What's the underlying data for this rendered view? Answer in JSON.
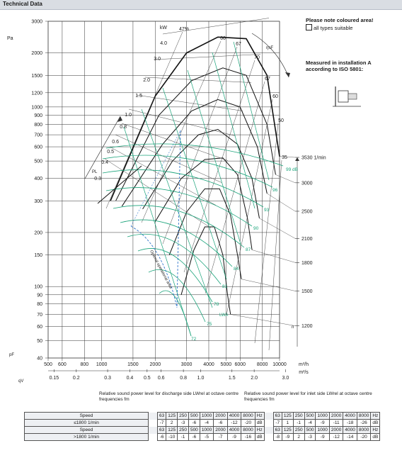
{
  "header": {
    "title": "Technical Data"
  },
  "notes": {
    "coloured_area": "Please note coloured area!",
    "all_types": "all types suitable",
    "measured_1": "Measured in installation A",
    "measured_2": "according to ISO 5801:"
  },
  "colors": {
    "grid": "#333333",
    "black_curve": "#111111",
    "green": "#1aa37a",
    "blue_dash": "#3377cc",
    "header_bg": "#d9dde3"
  },
  "chart_data": {
    "type": "line",
    "title": "",
    "y_axis": {
      "label": "Pa",
      "sub_label": "pF",
      "scale": "log",
      "range": [
        40,
        3000
      ],
      "ticks": [
        40,
        50,
        60,
        70,
        80,
        90,
        100,
        150,
        200,
        300,
        400,
        500,
        600,
        700,
        800,
        900,
        1000,
        1200,
        1500,
        2000,
        3000
      ]
    },
    "x_axis": {
      "label": "m³/h",
      "scale": "log",
      "range": [
        500,
        10000
      ],
      "ticks": [
        500,
        600,
        800,
        1000,
        1500,
        2000,
        3000,
        4000,
        5000,
        6000,
        8000,
        10000
      ]
    },
    "x_axis_2": {
      "label": "m³/s",
      "sub_label": "qV",
      "ticks": [
        "0.15",
        "0.2",
        "0.3",
        "0.4",
        "0.5",
        "0.6",
        "0.8",
        "1.0",
        "1.5",
        "2.0",
        "3.0"
      ],
      "tick_values": [
        0.15,
        0.2,
        0.3,
        0.4,
        0.5,
        0.6,
        0.8,
        1.0,
        1.5,
        2.0,
        3.0
      ]
    },
    "speed_axis": {
      "unit": "1/min",
      "ticks": [
        1200,
        1500,
        1800,
        2100,
        2500,
        3000,
        3530
      ],
      "sub_label": "n"
    },
    "power_labels": [
      "kW",
      "4.0",
      "3.0",
      "2.0",
      "1.5",
      "1.0",
      "0.8",
      "0.6",
      "0.5",
      "0.4",
      "0.3"
    ],
    "efficiency_labels": [
      "47%",
      "60",
      "67",
      "70",
      "67",
      "60",
      "50",
      "35"
    ],
    "efficiency_axis_label": "ηsF",
    "power_axis_label": "PL",
    "sound_labels": [
      "99 dB",
      "96",
      "93",
      "90",
      "87",
      "84",
      "81",
      "78",
      "75",
      "72"
    ],
    "sound_axis_label": "LWA",
    "annotation": "Optimal operational area",
    "speed_curves": [
      {
        "n": 3530,
        "points": [
          [
            1120,
            300
          ],
          [
            2000,
            1150
          ],
          [
            3000,
            2000
          ],
          [
            4500,
            2450
          ],
          [
            6500,
            2400
          ],
          [
            8500,
            1500
          ],
          [
            10000,
            530
          ]
        ]
      },
      {
        "n": 3000,
        "points": [
          [
            1200,
            300
          ],
          [
            2100,
            900
          ],
          [
            3200,
            1400
          ],
          [
            4800,
            1650
          ],
          [
            6500,
            1500
          ],
          [
            8500,
            800
          ],
          [
            9500,
            420
          ]
        ]
      },
      {
        "n": 2500,
        "points": [
          [
            1300,
            280
          ],
          [
            2200,
            620
          ],
          [
            3200,
            950
          ],
          [
            4500,
            1100
          ],
          [
            6000,
            1000
          ],
          [
            7500,
            600
          ],
          [
            8500,
            330
          ]
        ]
      },
      {
        "n": 2100,
        "points": [
          [
            1700,
            270
          ],
          [
            2500,
            500
          ],
          [
            3500,
            700
          ],
          [
            4500,
            750
          ],
          [
            5800,
            620
          ],
          [
            7000,
            400
          ],
          [
            7700,
            240
          ]
        ]
      },
      {
        "n": 1800,
        "points": [
          [
            2000,
            230
          ],
          [
            2800,
            400
          ],
          [
            3800,
            510
          ],
          [
            4800,
            520
          ],
          [
            5800,
            420
          ],
          [
            6600,
            240
          ],
          [
            7000,
            160
          ]
        ]
      },
      {
        "n": 1500,
        "points": [
          [
            2400,
            150
          ],
          [
            3000,
            260
          ],
          [
            3800,
            350
          ],
          [
            4600,
            350
          ],
          [
            5300,
            250
          ],
          [
            5800,
            150
          ],
          [
            6100,
            110
          ]
        ]
      },
      {
        "n": 1200,
        "points": [
          [
            2800,
            90
          ],
          [
            3300,
            160
          ],
          [
            3800,
            215
          ],
          [
            4300,
            215
          ],
          [
            4800,
            150
          ],
          [
            5100,
            90
          ],
          [
            5300,
            70
          ]
        ]
      }
    ]
  },
  "tables": {
    "discharge_caption": "Relative sound power level for discharge side LWrel at octave centre frequencies fm",
    "inlet_caption": "Relative sound power level for inlet side LWrel at octave centre frequencies fm",
    "freq_headers": [
      "63",
      "125",
      "250",
      "500",
      "1000",
      "2000",
      "4000",
      "8000",
      "Hz"
    ],
    "rows": [
      {
        "label": "Speed",
        "header": true
      },
      {
        "label": "≤1800 1/min",
        "discharge": [
          "-7",
          "2",
          "-3",
          "-6",
          "-4",
          "-6",
          "-12",
          "-20",
          "dB"
        ],
        "inlet": [
          "-7",
          "1",
          "-1",
          "-4",
          "-9",
          "-11",
          "-18",
          "-26",
          "dB"
        ]
      },
      {
        "label": "Speed",
        "header": true
      },
      {
        "label": ">1800 1/min",
        "discharge": [
          "-6",
          "-10",
          "-1",
          "-6",
          "-5",
          "-7",
          "-9",
          "-16",
          "dB"
        ],
        "inlet": [
          "-8",
          "-9",
          "2",
          "-3",
          "-9",
          "-12",
          "-14",
          "-20",
          "dB"
        ]
      }
    ]
  }
}
